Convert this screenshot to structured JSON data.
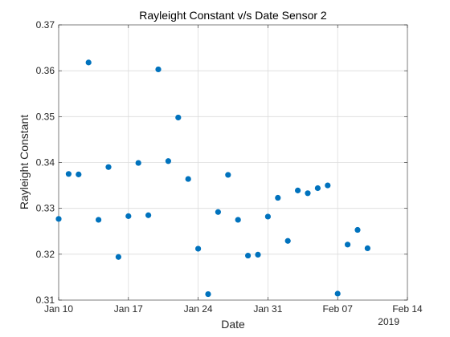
{
  "chart_data": {
    "type": "scatter",
    "title": "Rayleight Constant v/s Date Sensor 2",
    "xlabel": "Date",
    "ylabel": "Rayleight Constant",
    "x_tick_labels": [
      "Jan 10",
      "Jan 17",
      "Jan 24",
      "Jan 31",
      "Feb 07",
      "Feb 14"
    ],
    "x_secondary_label": "2019",
    "xlim": [
      "2019-01-10",
      "2019-02-14"
    ],
    "ylim": [
      0.31,
      0.37
    ],
    "y_ticks": [
      0.31,
      0.32,
      0.33,
      0.34,
      0.35,
      0.36,
      0.37
    ],
    "y_tick_labels": [
      "0.31",
      "0.32",
      "0.33",
      "0.34",
      "0.35",
      "0.36",
      "0.37"
    ],
    "grid": true,
    "marker_color": "#0072BD",
    "points": [
      {
        "x": "2019-01-10",
        "y": 0.3277
      },
      {
        "x": "2019-01-11",
        "y": 0.3375
      },
      {
        "x": "2019-01-12",
        "y": 0.3374
      },
      {
        "x": "2019-01-13",
        "y": 0.3618
      },
      {
        "x": "2019-01-14",
        "y": 0.3275
      },
      {
        "x": "2019-01-15",
        "y": 0.339
      },
      {
        "x": "2019-01-16",
        "y": 0.3194
      },
      {
        "x": "2019-01-17",
        "y": 0.3283
      },
      {
        "x": "2019-01-18",
        "y": 0.3399
      },
      {
        "x": "2019-01-19",
        "y": 0.3285
      },
      {
        "x": "2019-01-20",
        "y": 0.3603
      },
      {
        "x": "2019-01-21",
        "y": 0.3403
      },
      {
        "x": "2019-01-22",
        "y": 0.3498
      },
      {
        "x": "2019-01-23",
        "y": 0.3364
      },
      {
        "x": "2019-01-24",
        "y": 0.3212
      },
      {
        "x": "2019-01-25",
        "y": 0.3113
      },
      {
        "x": "2019-01-26",
        "y": 0.3292
      },
      {
        "x": "2019-01-27",
        "y": 0.3373
      },
      {
        "x": "2019-01-28",
        "y": 0.3275
      },
      {
        "x": "2019-01-29",
        "y": 0.3197
      },
      {
        "x": "2019-01-30",
        "y": 0.3199
      },
      {
        "x": "2019-01-31",
        "y": 0.3282
      },
      {
        "x": "2019-02-01",
        "y": 0.3323
      },
      {
        "x": "2019-02-02",
        "y": 0.3229
      },
      {
        "x": "2019-02-03",
        "y": 0.3339
      },
      {
        "x": "2019-02-04",
        "y": 0.3333
      },
      {
        "x": "2019-02-05",
        "y": 0.3344
      },
      {
        "x": "2019-02-06",
        "y": 0.335
      },
      {
        "x": "2019-02-07",
        "y": 0.3114
      },
      {
        "x": "2019-02-08",
        "y": 0.3221
      },
      {
        "x": "2019-02-09",
        "y": 0.3253
      },
      {
        "x": "2019-02-10",
        "y": 0.3213
      }
    ]
  }
}
